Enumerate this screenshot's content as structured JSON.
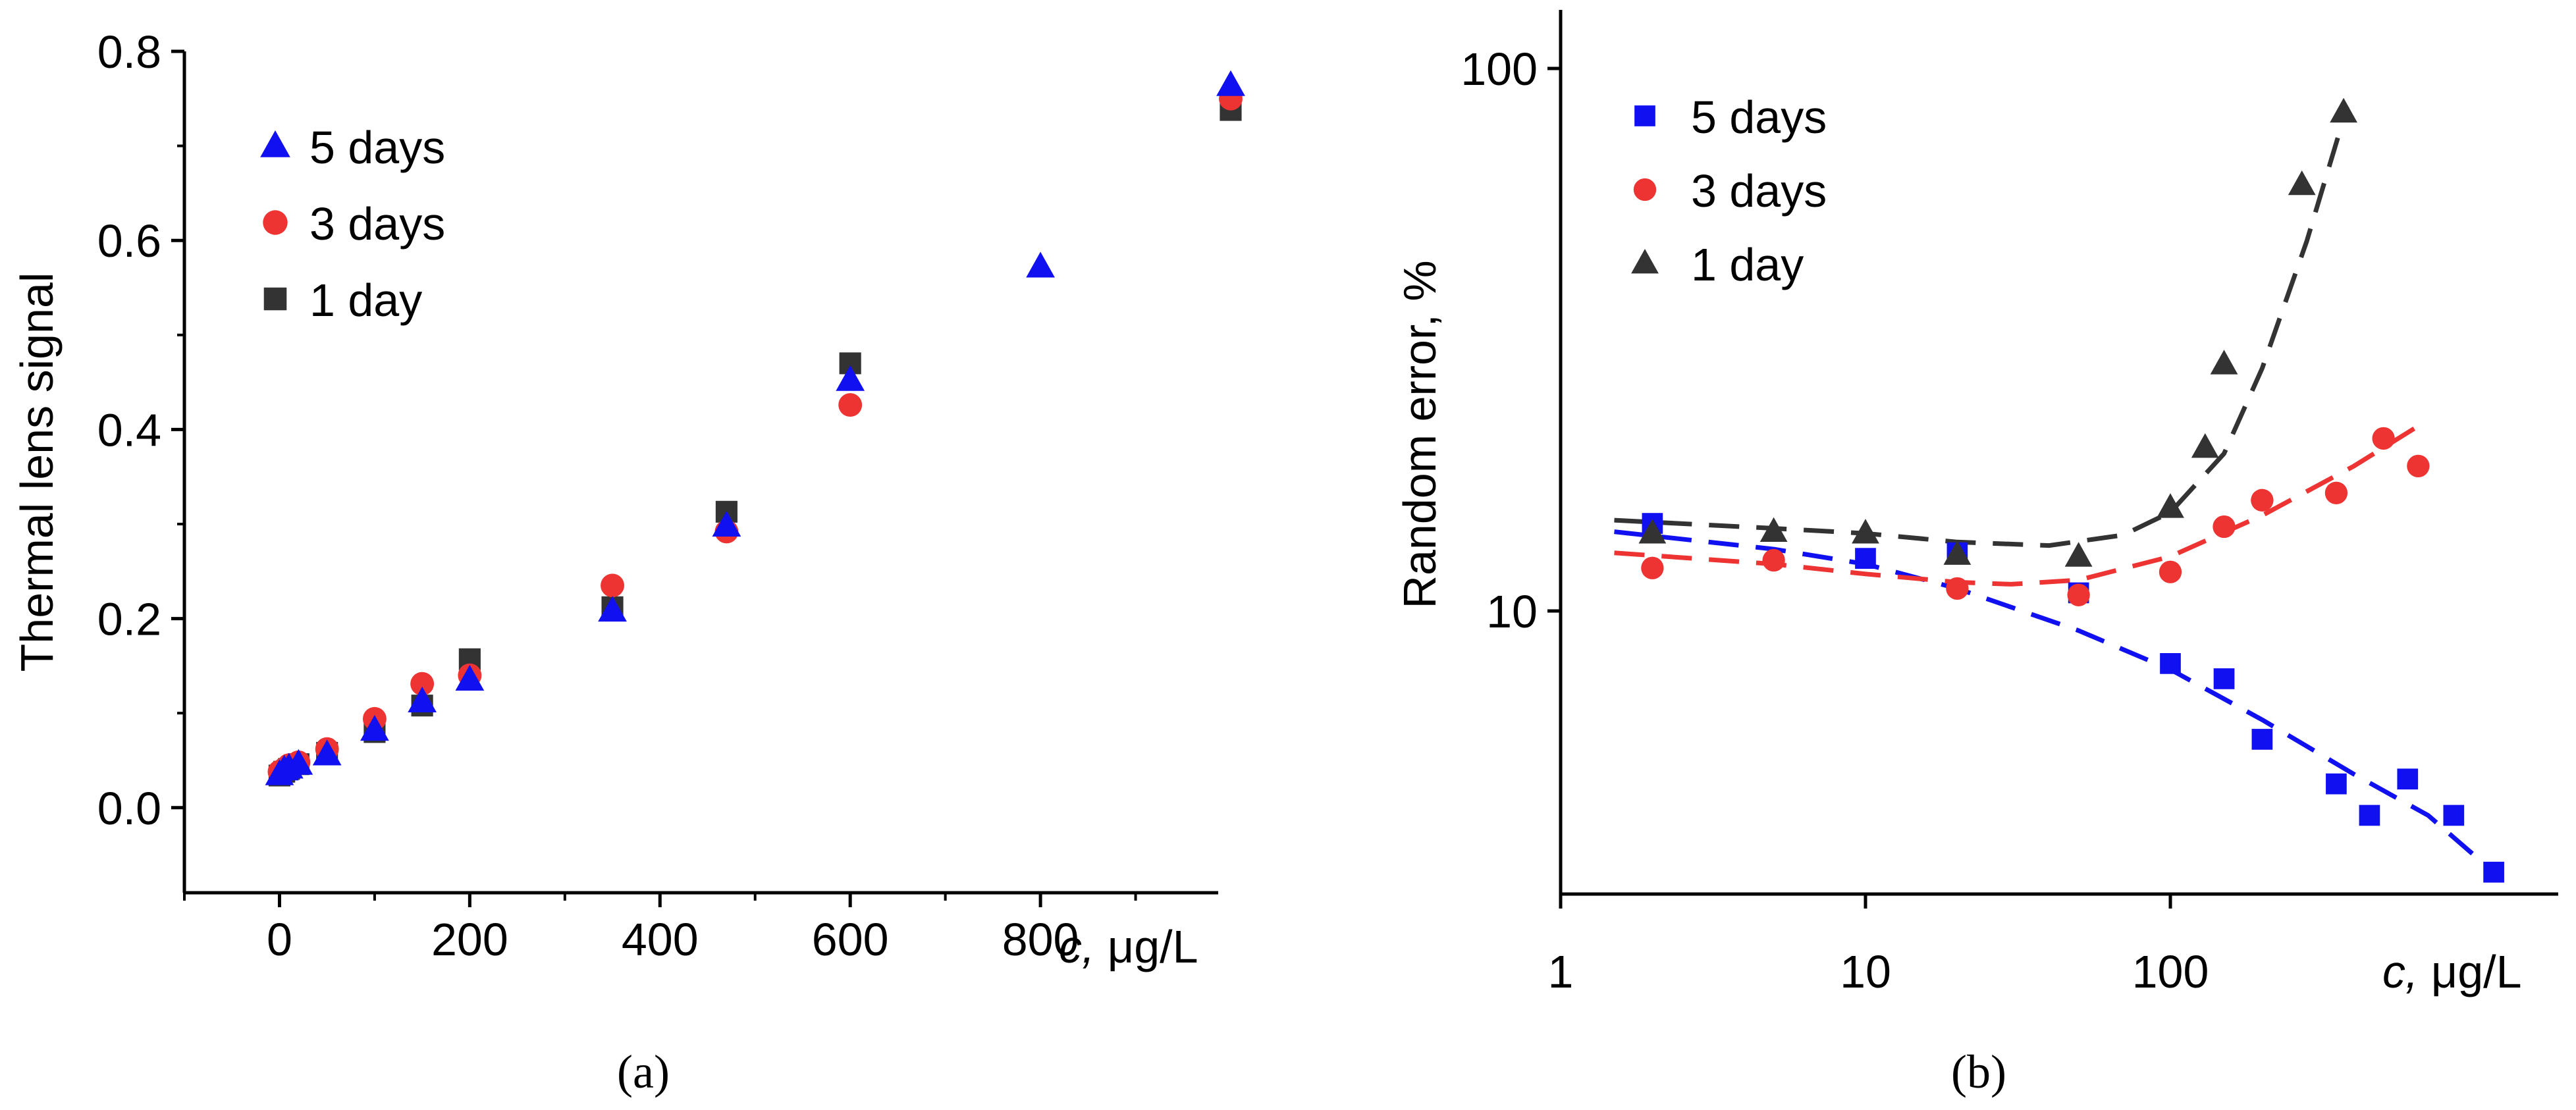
{
  "chart_data": [
    {
      "id": "a",
      "caption": "(a)",
      "type": "scatter",
      "xlabel_prefix": "c,",
      "xlabel_unit": " μg/L",
      "ylabel": "Thermal lens signal",
      "xlim": [
        -100,
        1000
      ],
      "ylim": [
        -0.09,
        0.8
      ],
      "xticks": [
        0,
        200,
        400,
        600,
        800
      ],
      "xtick_labels": [
        "0",
        "200",
        "400",
        "600",
        "800"
      ],
      "yticks": [
        0.0,
        0.2,
        0.4,
        0.6,
        0.8
      ],
      "ytick_labels": [
        "0.0",
        "0.2",
        "0.4",
        "0.6",
        "0.8"
      ],
      "legend_position": "top-left",
      "series": [
        {
          "name": "5 days",
          "marker": "triangle",
          "color": "#1010f0",
          "x": [
            0,
            5,
            10,
            20,
            50,
            100,
            150,
            200,
            350,
            470,
            600,
            800,
            1000
          ],
          "y": [
            0.035,
            0.04,
            0.042,
            0.046,
            0.056,
            0.082,
            0.112,
            0.135,
            0.208,
            0.298,
            0.452,
            0.572,
            0.764
          ]
        },
        {
          "name": "3 days",
          "marker": "circle",
          "color": "#ee3333",
          "x": [
            0,
            5,
            10,
            20,
            50,
            100,
            150,
            200,
            350,
            470,
            600,
            1000
          ],
          "y": [
            0.038,
            0.041,
            0.045,
            0.048,
            0.062,
            0.094,
            0.131,
            0.14,
            0.235,
            0.292,
            0.426,
            0.75
          ]
        },
        {
          "name": "1 day",
          "marker": "square",
          "color": "#333333",
          "x": [
            0,
            5,
            10,
            20,
            50,
            100,
            150,
            200,
            350,
            470,
            600,
            1000
          ],
          "y": [
            0.034,
            0.038,
            0.041,
            0.046,
            0.058,
            0.08,
            0.108,
            0.157,
            0.212,
            0.313,
            0.47,
            0.738
          ]
        }
      ]
    },
    {
      "id": "b",
      "caption": "(b)",
      "type": "scatter",
      "xscale": "log",
      "yscale": "log",
      "xlabel_prefix": "c,",
      "xlabel_unit": " μg/L",
      "ylabel": "Random error, %",
      "xlim": [
        1,
        2000
      ],
      "ylim": [
        3,
        130
      ],
      "xticks": [
        1,
        10,
        100
      ],
      "xtick_labels": [
        "1",
        "10",
        "100"
      ],
      "yticks": [
        10,
        100
      ],
      "ytick_labels": [
        "10",
        "100"
      ],
      "legend_position": "top-left",
      "series": [
        {
          "name": "5 days",
          "marker": "square",
          "color": "#1010f0",
          "x": [
            2,
            10,
            20,
            50,
            100,
            150,
            200,
            350,
            450,
            600,
            850,
            1150
          ],
          "y": [
            14.5,
            12.5,
            12.8,
            10.8,
            8.0,
            7.5,
            5.8,
            4.8,
            4.2,
            4.9,
            4.2,
            3.3
          ],
          "fit": {
            "x": [
              1.5,
              5,
              10,
              20,
              50,
              100,
              200,
              400,
              700,
              1150
            ],
            "y": [
              14.0,
              13.0,
              12.2,
              11.0,
              9.2,
              7.8,
              6.3,
              5.0,
              4.2,
              3.3
            ]
          }
        },
        {
          "name": "3 days",
          "marker": "circle",
          "color": "#ee3333",
          "x": [
            2,
            5,
            20,
            50,
            100,
            150,
            200,
            350,
            500,
            650
          ],
          "y": [
            12.0,
            12.4,
            11.0,
            10.7,
            11.8,
            14.3,
            16.0,
            16.5,
            20.8,
            18.5
          ],
          "fit": {
            "x": [
              1.5,
              5,
              10,
              20,
              30,
              50,
              100,
              200,
              400,
              700
            ],
            "y": [
              12.8,
              12.2,
              11.7,
              11.3,
              11.2,
              11.4,
              12.6,
              15.0,
              18.5,
              22.5
            ]
          }
        },
        {
          "name": "1 day",
          "marker": "triangle",
          "color": "#333333",
          "x": [
            2,
            5,
            10,
            20,
            50,
            100,
            130,
            150,
            270,
            370
          ],
          "y": [
            13.9,
            14.0,
            13.9,
            12.7,
            12.6,
            15.5,
            20.0,
            28.5,
            61.0,
            83.0
          ],
          "fit": {
            "x": [
              1.5,
              5,
              10,
              20,
              40,
              70,
              100,
              150,
              200,
              280,
              380
            ],
            "y": [
              14.7,
              14.2,
              13.9,
              13.4,
              13.2,
              13.8,
              15.2,
              19.5,
              28.0,
              48.0,
              85.0
            ]
          }
        }
      ]
    }
  ]
}
